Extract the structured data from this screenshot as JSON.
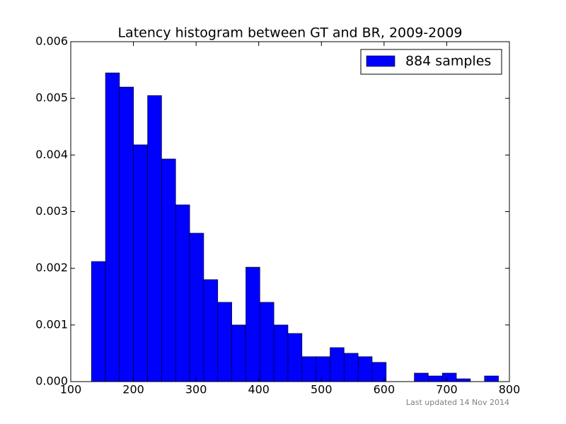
{
  "chart_data": {
    "type": "histogram",
    "title": "Latency histogram between GT and BR, 2009-2009",
    "bins": [
      133,
      155.4,
      177.8,
      200.2,
      222.6,
      245,
      267.4,
      289.8,
      312.2,
      334.6,
      357,
      379.4,
      401.8,
      424.2,
      446.6,
      469,
      491.4,
      513.8,
      536.2,
      558.6,
      581,
      603.4,
      625.8,
      648.2,
      670.6,
      693,
      715.4,
      737.8,
      760.2,
      782.6
    ],
    "series": [
      {
        "name": "884 samples",
        "color": "#0000ff",
        "values": [
          0.00212,
          0.00545,
          0.0052,
          0.00418,
          0.00505,
          0.00393,
          0.00312,
          0.00262,
          0.0018,
          0.0014,
          0.001,
          0.00202,
          0.0014,
          0.001,
          0.00085,
          0.00044,
          0.00044,
          0.0006,
          0.0005,
          0.00044,
          0.00034,
          0,
          0,
          0.00015,
          0.0001,
          0.00015,
          5e-05,
          0,
          0.0001
        ]
      }
    ],
    "xlim": [
      100,
      800
    ],
    "xticks": [
      100,
      200,
      300,
      400,
      500,
      600,
      700,
      800
    ],
    "ylim": [
      0,
      0.006
    ],
    "yticks": [
      {
        "value": 0,
        "label": "0.000"
      },
      0.001,
      0.002,
      0.003,
      0.004,
      0.005,
      0.006
    ],
    "legend": "upper right",
    "footnote": "Last updated 14 Nov 2014"
  }
}
